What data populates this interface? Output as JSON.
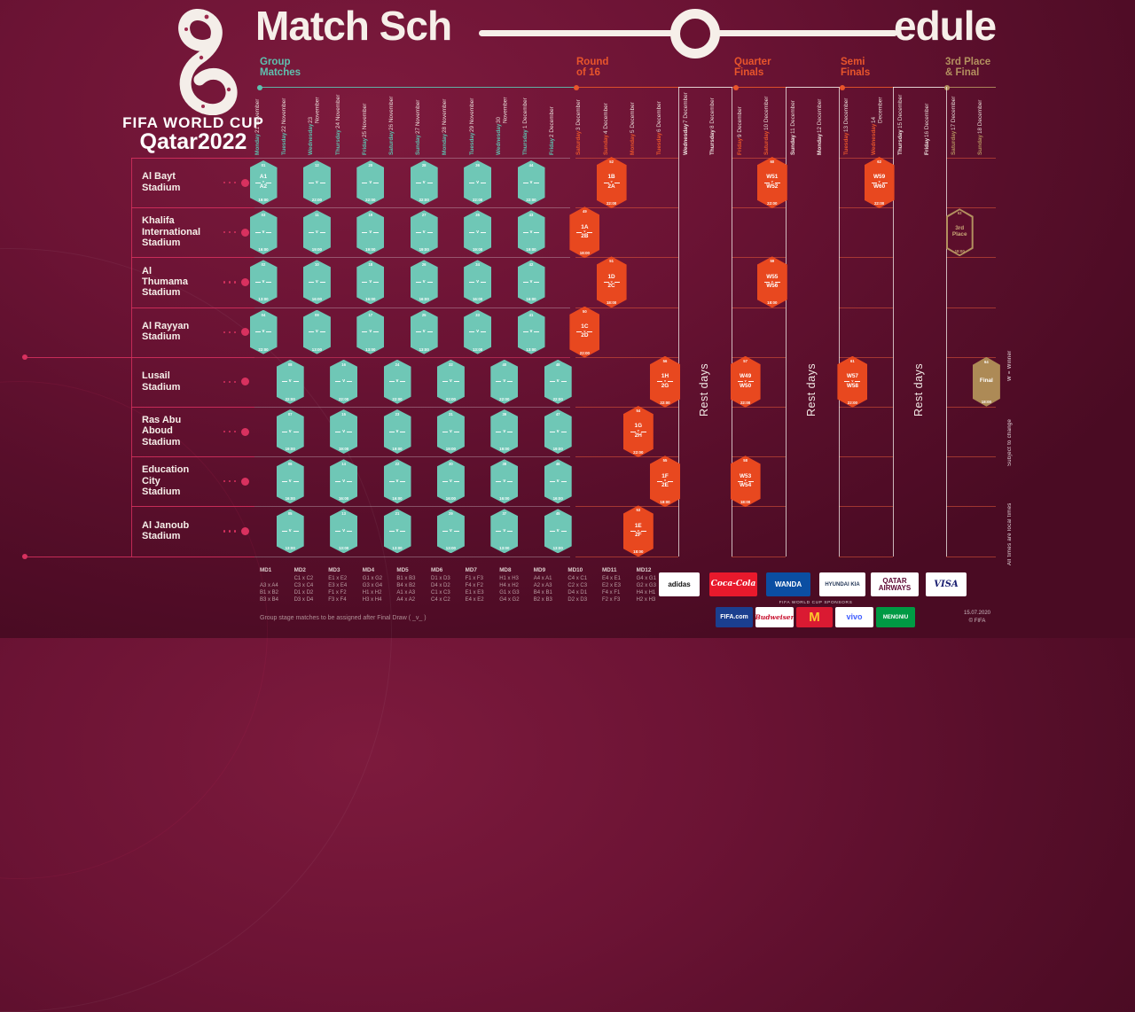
{
  "meta": {
    "title_left": "Match Sch",
    "title_right": "edule",
    "vs": "v",
    "published": "15.07.2020",
    "copyright": "© FIFA"
  },
  "logo": {
    "line1": "FIFA WORLD CUP",
    "line2": "Qatar2022"
  },
  "colors": {
    "teal": "#5ec1af",
    "orange": "#e8552b",
    "gold": "#b3905f",
    "pink": "#d8315f",
    "badge_teal": "#6fc7b6",
    "badge_orange": "#e8481f",
    "badge_gold": "#ad8a56",
    "white": "#f6efe9"
  },
  "sections": [
    {
      "id": "group",
      "label": "Group\nMatches",
      "color": "#5ec1af"
    },
    {
      "id": "r16",
      "label": "Round\nof 16",
      "color": "#e8552b"
    },
    {
      "id": "qf",
      "label": "Quarter\nFinals",
      "color": "#e8552b"
    },
    {
      "id": "sf",
      "label": "Semi\nFinals",
      "color": "#e8552b"
    },
    {
      "id": "final",
      "label": "3rd Place\n& Final",
      "color": "#b3905f"
    }
  ],
  "side_notes": {
    "rest": "Rest days",
    "winner": "W = Winner",
    "subject": "Subject to change",
    "local": "All times are local times"
  },
  "dates": [
    {
      "day": "Monday",
      "date": "21 November",
      "type": "group"
    },
    {
      "day": "Tuesday",
      "date": "22 November",
      "type": "group"
    },
    {
      "day": "Wednesday",
      "date": "23 November",
      "type": "group"
    },
    {
      "day": "Thursday",
      "date": "24 November",
      "type": "group"
    },
    {
      "day": "Friday",
      "date": "25 November",
      "type": "group"
    },
    {
      "day": "Saturday",
      "date": "26 November",
      "type": "group"
    },
    {
      "day": "Sunday",
      "date": "27 November",
      "type": "group"
    },
    {
      "day": "Monday",
      "date": "28 November",
      "type": "group"
    },
    {
      "day": "Tuesday",
      "date": "29 November",
      "type": "group"
    },
    {
      "day": "Wednesday",
      "date": "30 November",
      "type": "group"
    },
    {
      "day": "Thursday",
      "date": "1 December",
      "type": "group"
    },
    {
      "day": "Friday",
      "date": "2 December",
      "type": "group"
    },
    {
      "day": "Saturday",
      "date": "3 December",
      "type": "r16"
    },
    {
      "day": "Sunday",
      "date": "4 December",
      "type": "r16"
    },
    {
      "day": "Monday",
      "date": "5 December",
      "type": "r16"
    },
    {
      "day": "Tuesday",
      "date": "6 December",
      "type": "r16"
    },
    {
      "day": "Wednesday",
      "date": "7 December",
      "type": "rest"
    },
    {
      "day": "Thursday",
      "date": "8 December",
      "type": "rest"
    },
    {
      "day": "Friday",
      "date": "9 December",
      "type": "qf"
    },
    {
      "day": "Saturday",
      "date": "10 December",
      "type": "qf"
    },
    {
      "day": "Sunday",
      "date": "11 December",
      "type": "rest"
    },
    {
      "day": "Monday",
      "date": "12 December",
      "type": "rest"
    },
    {
      "day": "Tuesday",
      "date": "13 December",
      "type": "sf"
    },
    {
      "day": "Wednesday",
      "date": "14 December",
      "type": "sf"
    },
    {
      "day": "Thursday",
      "date": "15 December",
      "type": "rest"
    },
    {
      "day": "Friday",
      "date": "16 December",
      "type": "rest"
    },
    {
      "day": "Saturday",
      "date": "17 December",
      "type": "final"
    },
    {
      "day": "Sunday",
      "date": "18 December",
      "type": "final"
    }
  ],
  "stadiums": [
    {
      "name": "Al Bayt\nStadium",
      "matches": [
        {
          "c": 0,
          "n": "01",
          "a": "A1",
          "b": "A2",
          "t": "19:00",
          "k": "g"
        },
        {
          "c": 2,
          "n": "12",
          "t": "22:00",
          "k": "g"
        },
        {
          "c": 4,
          "n": "20",
          "t": "22:00",
          "k": "g"
        },
        {
          "c": 6,
          "n": "28",
          "t": "22:00",
          "k": "g"
        },
        {
          "c": 8,
          "n": "36",
          "t": "22:00",
          "k": "g"
        },
        {
          "c": 10,
          "n": "44",
          "t": "22:00",
          "k": "g"
        },
        {
          "c": 13,
          "n": "52",
          "a": "1B",
          "b": "2A",
          "t": "22:00",
          "k": "r16"
        },
        {
          "c": 19,
          "n": "60",
          "a": "W51",
          "b": "W52",
          "t": "22:00",
          "k": "qf"
        },
        {
          "c": 23,
          "n": "62",
          "a": "W59",
          "b": "W60",
          "t": "22:00",
          "k": "sf"
        }
      ]
    },
    {
      "name": "Khalifa\nInternational\nStadium",
      "matches": [
        {
          "c": 0,
          "n": "03",
          "t": "16:00",
          "k": "g"
        },
        {
          "c": 2,
          "n": "11",
          "t": "19:00",
          "k": "g"
        },
        {
          "c": 4,
          "n": "19",
          "t": "19:00",
          "k": "g"
        },
        {
          "c": 6,
          "n": "27",
          "t": "19:00",
          "k": "g"
        },
        {
          "c": 8,
          "n": "35",
          "t": "19:00",
          "k": "g"
        },
        {
          "c": 10,
          "n": "43",
          "t": "19:00",
          "k": "g"
        },
        {
          "c": 12,
          "n": "49",
          "a": "1A",
          "b": "2B",
          "t": "18:00",
          "k": "r16"
        },
        {
          "c": 26,
          "n": "63",
          "lines": [
            "3rd",
            "Place"
          ],
          "t": "18:00",
          "k": "third"
        }
      ]
    },
    {
      "name": "Al\nThumama\nStadium",
      "matches": [
        {
          "c": 0,
          "n": "02",
          "t": "13:00",
          "k": "g"
        },
        {
          "c": 2,
          "n": "10",
          "t": "16:00",
          "k": "g"
        },
        {
          "c": 4,
          "n": "18",
          "t": "16:00",
          "k": "g"
        },
        {
          "c": 6,
          "n": "26",
          "t": "16:00",
          "k": "g"
        },
        {
          "c": 8,
          "n": "34",
          "t": "16:00",
          "k": "g"
        },
        {
          "c": 10,
          "n": "42",
          "t": "16:00",
          "k": "g"
        },
        {
          "c": 13,
          "n": "51",
          "a": "1D",
          "b": "2C",
          "t": "18:00",
          "k": "r16"
        },
        {
          "c": 19,
          "n": "59",
          "a": "W55",
          "b": "W56",
          "t": "18:00",
          "k": "qf"
        }
      ]
    },
    {
      "name": "Al Rayyan\nStadium",
      "matches": [
        {
          "c": 0,
          "n": "04",
          "t": "22:00",
          "k": "g"
        },
        {
          "c": 2,
          "n": "09",
          "t": "13:00",
          "k": "g"
        },
        {
          "c": 4,
          "n": "17",
          "t": "13:00",
          "k": "g"
        },
        {
          "c": 6,
          "n": "25",
          "t": "13:00",
          "k": "g"
        },
        {
          "c": 8,
          "n": "33",
          "t": "13:00",
          "k": "g"
        },
        {
          "c": 10,
          "n": "41",
          "t": "13:00",
          "k": "g"
        },
        {
          "c": 12,
          "n": "50",
          "a": "1C",
          "b": "2D",
          "t": "22:00",
          "k": "r16"
        }
      ]
    },
    {
      "name": "Lusail\nStadium",
      "matches": [
        {
          "c": 1,
          "n": "08",
          "t": "22:00",
          "k": "g"
        },
        {
          "c": 3,
          "n": "16",
          "t": "22:00",
          "k": "g"
        },
        {
          "c": 5,
          "n": "24",
          "t": "22:00",
          "k": "g"
        },
        {
          "c": 7,
          "n": "32",
          "t": "22:00",
          "k": "g"
        },
        {
          "c": 9,
          "n": "40",
          "t": "22:00",
          "k": "g"
        },
        {
          "c": 11,
          "n": "48",
          "t": "22:00",
          "k": "g"
        },
        {
          "c": 15,
          "n": "56",
          "a": "1H",
          "b": "2G",
          "t": "22:00",
          "k": "r16"
        },
        {
          "c": 18,
          "n": "57",
          "a": "W49",
          "b": "W50",
          "t": "22:00",
          "k": "qf"
        },
        {
          "c": 22,
          "n": "61",
          "a": "W57",
          "b": "W58",
          "t": "22:00",
          "k": "sf"
        },
        {
          "c": 27,
          "n": "64",
          "lines": [
            "Final"
          ],
          "t": "18:00",
          "k": "final"
        }
      ]
    },
    {
      "name": "Ras Abu\nAboud\nStadium",
      "matches": [
        {
          "c": 1,
          "n": "07",
          "t": "19:00",
          "k": "g"
        },
        {
          "c": 3,
          "n": "15",
          "t": "19:00",
          "k": "g"
        },
        {
          "c": 5,
          "n": "23",
          "t": "19:00",
          "k": "g"
        },
        {
          "c": 7,
          "n": "31",
          "t": "19:00",
          "k": "g"
        },
        {
          "c": 9,
          "n": "39",
          "t": "19:00",
          "k": "g"
        },
        {
          "c": 11,
          "n": "47",
          "t": "19:00",
          "k": "g"
        },
        {
          "c": 14,
          "n": "54",
          "a": "1G",
          "b": "2H",
          "t": "22:00",
          "k": "r16"
        }
      ]
    },
    {
      "name": "Education\nCity\nStadium",
      "matches": [
        {
          "c": 1,
          "n": "06",
          "t": "16:00",
          "k": "g"
        },
        {
          "c": 3,
          "n": "14",
          "t": "16:00",
          "k": "g"
        },
        {
          "c": 5,
          "n": "22",
          "t": "16:00",
          "k": "g"
        },
        {
          "c": 7,
          "n": "30",
          "t": "16:00",
          "k": "g"
        },
        {
          "c": 9,
          "n": "38",
          "t": "16:00",
          "k": "g"
        },
        {
          "c": 11,
          "n": "46",
          "t": "16:00",
          "k": "g"
        },
        {
          "c": 15,
          "n": "55",
          "a": "1F",
          "b": "2E",
          "t": "18:00",
          "k": "r16"
        },
        {
          "c": 18,
          "n": "58",
          "a": "W53",
          "b": "W54",
          "t": "18:00",
          "k": "qf"
        }
      ]
    },
    {
      "name": "Al Janoub\nStadium",
      "matches": [
        {
          "c": 1,
          "n": "05",
          "t": "13:00",
          "k": "g"
        },
        {
          "c": 3,
          "n": "13",
          "t": "13:00",
          "k": "g"
        },
        {
          "c": 5,
          "n": "21",
          "t": "13:00",
          "k": "g"
        },
        {
          "c": 7,
          "n": "29",
          "t": "13:00",
          "k": "g"
        },
        {
          "c": 9,
          "n": "37",
          "t": "13:00",
          "k": "g"
        },
        {
          "c": 11,
          "n": "45",
          "t": "13:00",
          "k": "g"
        },
        {
          "c": 14,
          "n": "53",
          "a": "1E",
          "b": "2F",
          "t": "18:00",
          "k": "r16"
        }
      ]
    }
  ],
  "legend": {
    "columns": [
      {
        "label": "MD1",
        "lines": [
          "",
          "A3 x A4",
          "B1 x B2",
          "B3 x B4"
        ]
      },
      {
        "label": "MD2",
        "lines": [
          "C1 x C2",
          "C3 x C4",
          "D1 x D2",
          "D3 x D4"
        ]
      },
      {
        "label": "MD3",
        "lines": [
          "E1 x E2",
          "E3 x E4",
          "F1 x F2",
          "F3 x F4"
        ]
      },
      {
        "label": "MD4",
        "lines": [
          "G1 x G2",
          "G3 x G4",
          "H1 x H2",
          "H3 x H4"
        ]
      },
      {
        "label": "MD5",
        "lines": [
          "B1 x B3",
          "B4 x B2",
          "A1 x A3",
          "A4 x A2"
        ]
      },
      {
        "label": "MD6",
        "lines": [
          "D1 x D3",
          "D4 x D2",
          "C1 x C3",
          "C4 x C2"
        ]
      },
      {
        "label": "MD7",
        "lines": [
          "F1 x F3",
          "F4 x F2",
          "E1 x E3",
          "E4 x E2"
        ]
      },
      {
        "label": "MD8",
        "lines": [
          "H1 x H3",
          "H4 x H2",
          "G1 x G3",
          "G4 x G2"
        ]
      },
      {
        "label": "MD9",
        "lines": [
          "A4 x A1",
          "A2 x A3",
          "B4 x B1",
          "B2 x B3"
        ]
      },
      {
        "label": "MD10",
        "lines": [
          "C4 x C1",
          "C2 x C3",
          "D4 x D1",
          "D2 x D3"
        ]
      },
      {
        "label": "MD11",
        "lines": [
          "E4 x E1",
          "E2 x E3",
          "F4 x F1",
          "F2 x F3"
        ]
      },
      {
        "label": "MD12",
        "lines": [
          "G4 x G1",
          "G2 x G3",
          "H4 x H1",
          "H2 x H3"
        ]
      }
    ],
    "note": "Group stage matches to be assigned after Final Draw ( _v_ )"
  },
  "sponsors": {
    "partners": [
      {
        "id": "adidas",
        "label": "adidas",
        "bg": "#ffffff",
        "fg": "#111111",
        "fs": 8,
        "cls": ""
      },
      {
        "id": "coca-cola",
        "label": "Coca-Cola",
        "bg": "#e8192c",
        "fg": "#ffffff",
        "fs": 9,
        "cls": "script"
      },
      {
        "id": "wanda",
        "label": "WANDA",
        "bg": "#0b4ea2",
        "fg": "#ffffff",
        "fs": 8,
        "cls": ""
      },
      {
        "id": "hyundai-kia",
        "label": "HYUNDAI  KIA",
        "bg": "#ffffff",
        "fg": "#253858",
        "fs": 6,
        "cls": ""
      },
      {
        "id": "qatar-airways",
        "label": "QATAR\nAIRWAYS",
        "bg": "#ffffff",
        "fg": "#5c0632",
        "fs": 8,
        "cls": ""
      },
      {
        "id": "visa",
        "label": "VISA",
        "bg": "#ffffff",
        "fg": "#1a1f71",
        "fs": 10,
        "cls": "script"
      }
    ],
    "label": "FIFA WORLD CUP SPONSORS",
    "wc_sponsors": [
      {
        "id": "fifa-com",
        "label": "FIFA.com",
        "bg": "#1b3f8f",
        "fg": "#ffffff",
        "fs": 7,
        "cls": ""
      },
      {
        "id": "budweiser",
        "label": "Budweiser",
        "bg": "#ffffff",
        "fg": "#c8102e",
        "fs": 7.5,
        "cls": "script"
      },
      {
        "id": "mcdonalds",
        "label": "M",
        "bg": "#da1a32",
        "fg": "#ffc72c",
        "fs": 15,
        "cls": ""
      },
      {
        "id": "vivo",
        "label": "vivo",
        "bg": "#ffffff",
        "fg": "#415fff",
        "fs": 9,
        "cls": ""
      },
      {
        "id": "mengniu",
        "label": "MENGNIU",
        "bg": "#009a44",
        "fg": "#ffffff",
        "fs": 6,
        "cls": ""
      }
    ]
  }
}
